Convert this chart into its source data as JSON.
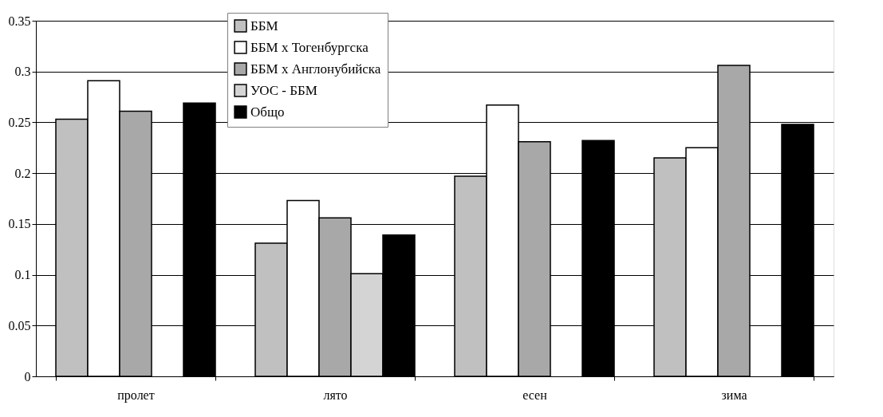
{
  "chart_data": {
    "type": "bar",
    "categories": [
      "пролет",
      "лято",
      "есен",
      "зима"
    ],
    "series": [
      {
        "name": "ББМ",
        "color": "#c0c0c0",
        "values": [
          0.253,
          0.131,
          0.197,
          0.215
        ]
      },
      {
        "name": "ББМ х Тогенбургска",
        "color": "#ffffff",
        "values": [
          0.291,
          0.173,
          0.267,
          0.225
        ]
      },
      {
        "name": "ББМ х Англонубийска",
        "color": "#a8a8a8",
        "values": [
          0.261,
          0.156,
          0.231,
          0.306
        ]
      },
      {
        "name": "УОС - ББМ",
        "color": "#d4d4d4",
        "values": [
          null,
          0.101,
          null,
          null
        ]
      },
      {
        "name": "Общо",
        "color": "#000000",
        "values": [
          0.269,
          0.139,
          0.232,
          0.248
        ]
      }
    ],
    "ylim": [
      0,
      0.35
    ],
    "yticks": [
      0,
      0.05,
      0.1,
      0.15,
      0.2,
      0.25,
      0.3,
      0.35
    ],
    "grid": "y",
    "legend": "top"
  }
}
